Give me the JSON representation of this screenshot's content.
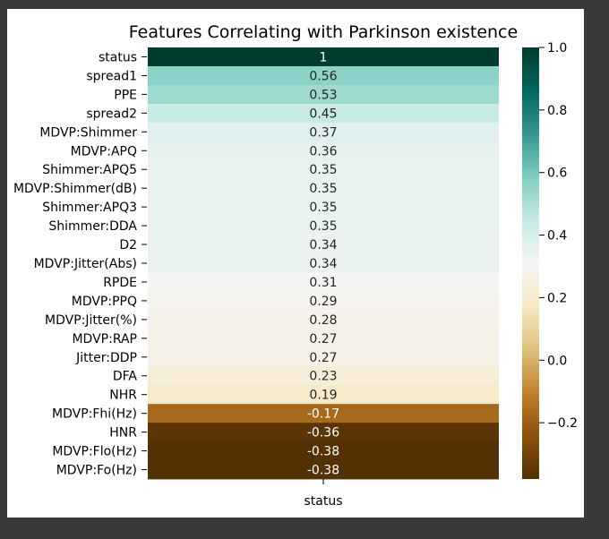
{
  "chart_data": {
    "type": "heatmap",
    "title": "Features Correlating with Parkinson existence",
    "xlabel": "",
    "ylabel": "",
    "columns": [
      "status"
    ],
    "rows": [
      "status",
      "spread1",
      "PPE",
      "spread2",
      "MDVP:Shimmer",
      "MDVP:APQ",
      "Shimmer:APQ5",
      "MDVP:Shimmer(dB)",
      "Shimmer:APQ3",
      "Shimmer:DDA",
      "D2",
      "MDVP:Jitter(Abs)",
      "RPDE",
      "MDVP:PPQ",
      "MDVP:Jitter(%)",
      "MDVP:RAP",
      "Jitter:DDP",
      "DFA",
      "NHR",
      "MDVP:Fhi(Hz)",
      "HNR",
      "MDVP:Flo(Hz)",
      "MDVP:Fo(Hz)"
    ],
    "values": [
      1,
      0.56,
      0.53,
      0.45,
      0.37,
      0.36,
      0.35,
      0.35,
      0.35,
      0.35,
      0.34,
      0.34,
      0.31,
      0.29,
      0.28,
      0.27,
      0.27,
      0.23,
      0.19,
      -0.17,
      -0.36,
      -0.38,
      -0.38
    ],
    "value_labels": [
      "1",
      "0.56",
      "0.53",
      "0.45",
      "0.37",
      "0.36",
      "0.35",
      "0.35",
      "0.35",
      "0.35",
      "0.34",
      "0.34",
      "0.31",
      "0.29",
      "0.28",
      "0.27",
      "0.27",
      "0.23",
      "0.19",
      "-0.17",
      "-0.36",
      "-0.38",
      "-0.38"
    ],
    "colormap": "BrBG",
    "vmin": -0.38,
    "vmax": 1,
    "colorbar_ticks": [
      1.0,
      0.8,
      0.6,
      0.4,
      0.2,
      0.0,
      -0.2
    ],
    "colorbar_tick_labels": [
      "1.0",
      "0.8",
      "0.6",
      "0.4",
      "0.2",
      "0.0",
      "−0.2"
    ],
    "colors": {
      "background": "#ffffff",
      "frame": "#3a3a3a",
      "text": "#000000",
      "annotation_light": "#ffffff",
      "annotation_dark": "#262626"
    }
  }
}
